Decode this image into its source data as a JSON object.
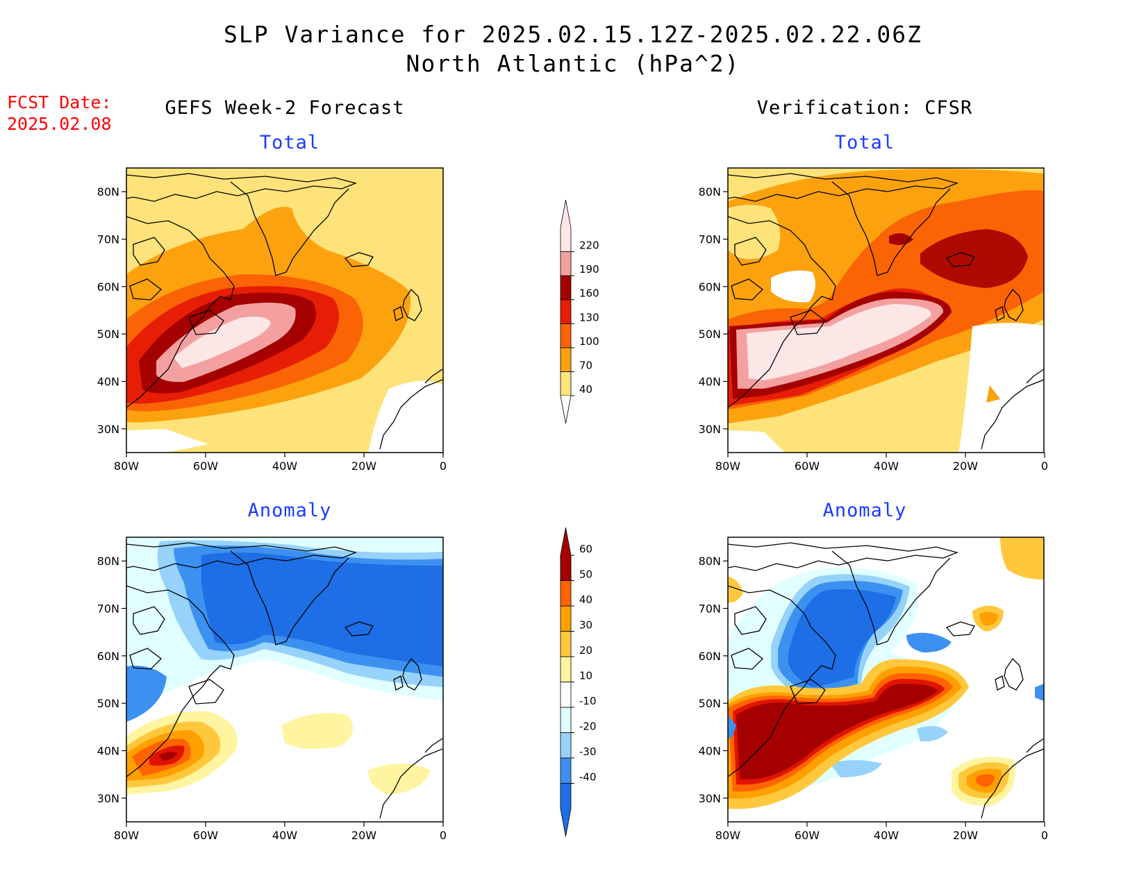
{
  "header": {
    "title_line1": "SLP Variance for 2025.02.15.12Z-2025.02.22.06Z",
    "title_line2": "North Atlantic (hPa^2)"
  },
  "fcst": {
    "line1": "FCST Date:",
    "line2": "2025.02.08"
  },
  "columns": {
    "left": "GEFS Week-2 Forecast",
    "right": "Verification: CFSR"
  },
  "panels": {
    "total": "Total",
    "anomaly": "Anomaly"
  },
  "axes": {
    "lat_labels": [
      "80N",
      "70N",
      "60N",
      "50N",
      "40N",
      "30N"
    ],
    "lon_labels": [
      "80W",
      "60W",
      "40W",
      "20W",
      "0"
    ]
  },
  "total_colorbar": {
    "levels": [
      "40",
      "70",
      "100",
      "130",
      "160",
      "190",
      "220"
    ],
    "colors": [
      "#fde37a",
      "#fca20f",
      "#fa6405",
      "#e61e05",
      "#a50000",
      "#f4a0a0",
      "#fde6e6"
    ]
  },
  "anomaly_colorbar": {
    "levels": [
      "-40",
      "-30",
      "-20",
      "-10",
      "10",
      "20",
      "30",
      "40",
      "50",
      "60"
    ],
    "colors": [
      "#1e6ee6",
      "#3c91f0",
      "#96d2fa",
      "#e1ffff",
      "#ffffff",
      "#fff5a0",
      "#ffc83c",
      "#ffa000",
      "#ff6400",
      "#e11400",
      "#a50000"
    ]
  }
}
